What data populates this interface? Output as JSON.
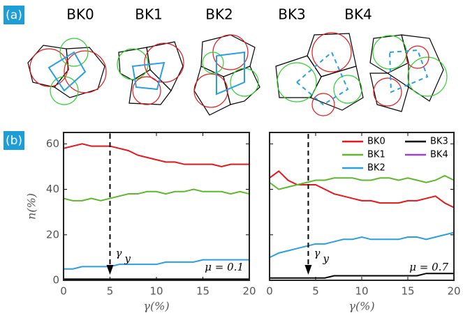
{
  "panel_labels": [
    "(a)",
    "(b)"
  ],
  "diagram_labels": [
    "BK0",
    "BK1",
    "BK2",
    "BK3",
    "BK4"
  ],
  "chart_data": [
    {
      "type": "line",
      "xlabel": "γ(%)",
      "ylabel": "n(%)",
      "annotation": "μ = 0.1",
      "yield_label": "γ",
      "yield_sub": "y",
      "yield_x": 5,
      "x": [
        0,
        1,
        2,
        3,
        4,
        5,
        6,
        7,
        8,
        9,
        10,
        11,
        12,
        13,
        14,
        15,
        16,
        17,
        18,
        19,
        20
      ],
      "xlim": [
        0,
        20
      ],
      "ylim": [
        0,
        65
      ],
      "xticks": [
        0,
        5,
        10,
        15,
        20
      ],
      "yticks": [
        0,
        20,
        40,
        60
      ],
      "show_ytick_labels": true,
      "legend": false,
      "series": [
        {
          "name": "BK0",
          "color": "#e8161b",
          "values": [
            58,
            59,
            60,
            59,
            59,
            59,
            58,
            57,
            55,
            54,
            53,
            52,
            52,
            51,
            51,
            51,
            51,
            50,
            51,
            51,
            51
          ]
        },
        {
          "name": "BK1",
          "color": "#5db82b",
          "values": [
            36,
            35,
            35,
            36,
            35,
            36,
            37,
            38,
            38,
            39,
            39,
            38,
            39,
            39,
            40,
            39,
            39,
            39,
            38,
            39,
            38
          ]
        },
        {
          "name": "BK2",
          "color": "#2a9fe0",
          "values": [
            5,
            5,
            6,
            6,
            6,
            6,
            7,
            7,
            7,
            7,
            7,
            8,
            8,
            8,
            8,
            9,
            9,
            9,
            9,
            9,
            9
          ]
        },
        {
          "name": "BK3",
          "color": "#000000",
          "values": [
            0.5,
            0.5,
            0.5,
            0.5,
            0.5,
            0.5,
            0.5,
            0.5,
            0.5,
            0.5,
            0.5,
            0.5,
            0.5,
            0.5,
            0.5,
            0.5,
            0.5,
            0.5,
            0.5,
            0.5,
            0.5
          ]
        },
        {
          "name": "BK4",
          "color": "#a040d0",
          "values": [
            0,
            0,
            0,
            0,
            0,
            0,
            0,
            0,
            0,
            0,
            0,
            0,
            0,
            0,
            0,
            0,
            0,
            0,
            0,
            0,
            0
          ]
        }
      ]
    },
    {
      "type": "line",
      "xlabel": "γ(%)",
      "annotation": "μ = 0.7",
      "yield_label": "γ",
      "yield_sub": "y",
      "yield_x": 4.2,
      "x": [
        0,
        1,
        2,
        3,
        4,
        5,
        6,
        7,
        8,
        9,
        10,
        11,
        12,
        13,
        14,
        15,
        16,
        17,
        18,
        19,
        20
      ],
      "xlim": [
        0,
        20
      ],
      "ylim": [
        0,
        65
      ],
      "xticks": [
        0,
        5,
        10,
        15,
        20
      ],
      "yticks": [
        0,
        20,
        40,
        60
      ],
      "show_ytick_labels": false,
      "legend": true,
      "series": [
        {
          "name": "BK0",
          "color": "#e8161b",
          "values": [
            45,
            48,
            44,
            42,
            42,
            42,
            40,
            38,
            37,
            36,
            35,
            35,
            34,
            34,
            34,
            35,
            35,
            36,
            37,
            34,
            32
          ]
        },
        {
          "name": "BK1",
          "color": "#5db82b",
          "values": [
            43,
            40,
            41,
            42,
            43,
            44,
            44,
            45,
            45,
            45,
            44,
            44,
            45,
            45,
            44,
            45,
            44,
            43,
            44,
            46,
            44
          ]
        },
        {
          "name": "BK2",
          "color": "#2a9fe0",
          "values": [
            10,
            12,
            13,
            14,
            15,
            16,
            16,
            17,
            18,
            18,
            19,
            18,
            18,
            18,
            18,
            19,
            19,
            18,
            19,
            20,
            21
          ]
        },
        {
          "name": "BK3",
          "color": "#000000",
          "values": [
            1,
            1,
            1,
            1,
            1,
            1,
            1,
            2,
            2,
            2,
            2,
            2,
            2,
            2,
            2,
            2,
            2,
            3,
            3,
            3,
            3
          ]
        },
        {
          "name": "BK4",
          "color": "#a040d0",
          "values": [
            0,
            0,
            0,
            0,
            0,
            0,
            0,
            0,
            0,
            0,
            0,
            0,
            0,
            0,
            0,
            0,
            0,
            0,
            0,
            0,
            0
          ]
        }
      ]
    }
  ]
}
